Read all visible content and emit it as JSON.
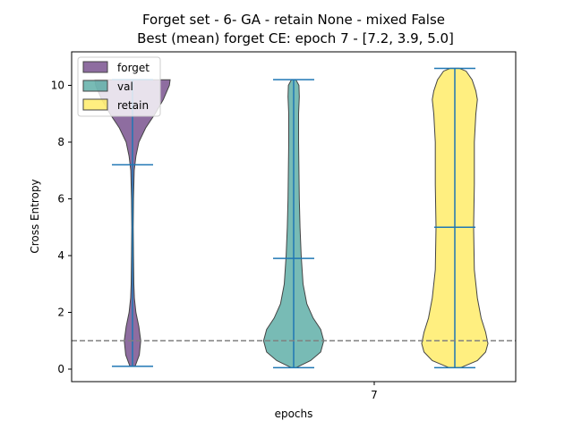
{
  "chart_data": {
    "type": "violin",
    "title_line1": "Forget set - 6- GA - retain None - mixed False",
    "title_line2": "Best (mean) forget CE: epoch 7 - [7.2, 3.9, 5.0]",
    "xlabel": "epochs",
    "ylabel": "Cross Entropy",
    "x_tick_labels": [
      "7"
    ],
    "ylim": [
      -0.4,
      11.1
    ],
    "y_ticks": [
      0,
      2,
      4,
      6,
      8,
      10
    ],
    "reference_line": 1.0,
    "legend_position": "upper-left",
    "series": [
      {
        "name": "forget",
        "color": "#5e2f78",
        "min": 0.1,
        "max": 10.2,
        "mean": 7.2,
        "profile": [
          [
            0.1,
            0.07
          ],
          [
            0.5,
            0.18
          ],
          [
            1.0,
            0.22
          ],
          [
            1.5,
            0.17
          ],
          [
            2.0,
            0.09
          ],
          [
            2.5,
            0.05
          ],
          [
            3.0,
            0.035
          ],
          [
            4.0,
            0.025
          ],
          [
            5.0,
            0.02
          ],
          [
            6.0,
            0.025
          ],
          [
            7.0,
            0.045
          ],
          [
            7.5,
            0.09
          ],
          [
            8.0,
            0.17
          ],
          [
            8.5,
            0.35
          ],
          [
            9.0,
            0.6
          ],
          [
            9.5,
            0.82
          ],
          [
            10.0,
            0.98
          ],
          [
            10.2,
            1.0
          ]
        ]
      },
      {
        "name": "val",
        "color": "#3e9e96",
        "min": 0.05,
        "max": 10.2,
        "mean": 3.9,
        "profile": [
          [
            0.05,
            0.06
          ],
          [
            0.3,
            0.45
          ],
          [
            0.6,
            0.72
          ],
          [
            1.0,
            0.8
          ],
          [
            1.4,
            0.72
          ],
          [
            1.8,
            0.52
          ],
          [
            2.3,
            0.35
          ],
          [
            3.0,
            0.25
          ],
          [
            4.0,
            0.2
          ],
          [
            5.0,
            0.17
          ],
          [
            6.0,
            0.15
          ],
          [
            7.0,
            0.14
          ],
          [
            8.0,
            0.13
          ],
          [
            9.0,
            0.13
          ],
          [
            9.6,
            0.15
          ],
          [
            10.0,
            0.14
          ],
          [
            10.2,
            0.06
          ]
        ]
      },
      {
        "name": "retain",
        "color": "#ffe84a",
        "min": 0.05,
        "max": 10.6,
        "mean": 5.0,
        "profile": [
          [
            0.05,
            0.15
          ],
          [
            0.3,
            0.6
          ],
          [
            0.6,
            0.82
          ],
          [
            0.9,
            0.88
          ],
          [
            1.3,
            0.82
          ],
          [
            1.8,
            0.7
          ],
          [
            2.5,
            0.6
          ],
          [
            3.5,
            0.52
          ],
          [
            5.0,
            0.5
          ],
          [
            6.5,
            0.52
          ],
          [
            8.0,
            0.52
          ],
          [
            9.0,
            0.56
          ],
          [
            9.5,
            0.6
          ],
          [
            9.8,
            0.56
          ],
          [
            10.2,
            0.46
          ],
          [
            10.5,
            0.3
          ],
          [
            10.6,
            0.12
          ]
        ]
      }
    ]
  }
}
